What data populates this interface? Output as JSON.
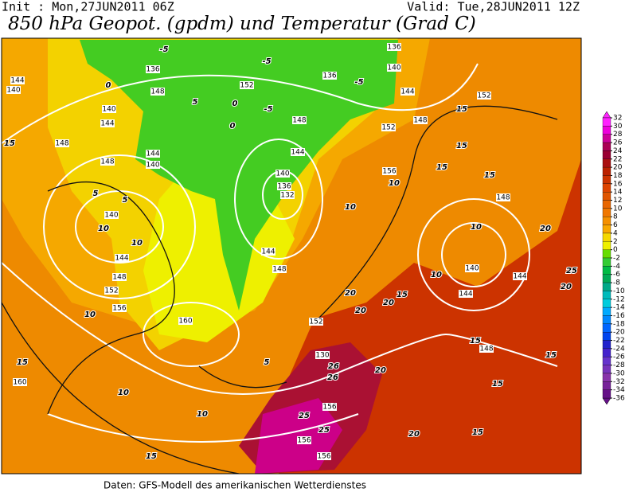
{
  "header": {
    "init": "Init : Mon,27JUN2011 06Z",
    "valid": "Valid: Tue,28JUN2011 12Z",
    "title": "850 hPa Geopot. (gpdm) und Temperatur (Grad C)"
  },
  "colorbar": {
    "levels": [
      32,
      30,
      28,
      26,
      24,
      22,
      20,
      18,
      16,
      14,
      12,
      10,
      8,
      6,
      4,
      2,
      0,
      -2,
      -4,
      -6,
      -8,
      -10,
      -12,
      -14,
      -16,
      -18,
      -20,
      -22,
      -24,
      -26,
      -28,
      -30,
      -32,
      -34,
      -36
    ],
    "colors": [
      "#ff22ff",
      "#ee00dd",
      "#cc0099",
      "#aa0055",
      "#990033",
      "#aa1111",
      "#bb2200",
      "#cc3300",
      "#dd4400",
      "#e05500",
      "#e86600",
      "#f07700",
      "#f59000",
      "#f8a800",
      "#f5d800",
      "#eef000",
      "#66dd00",
      "#33cc33",
      "#00bb44",
      "#00aa55",
      "#00aa88",
      "#00bbbb",
      "#00ccdd",
      "#00aaff",
      "#0088ff",
      "#0066ff",
      "#0044ee",
      "#2222cc",
      "#4422cc",
      "#6633cc",
      "#7733bb",
      "#8833aa",
      "#772299",
      "#661188"
    ]
  },
  "map_labels": [
    144,
    140,
    136,
    0,
    -5,
    140,
    144,
    148,
    5,
    152,
    0,
    0,
    -5,
    148,
    136,
    -5,
    140,
    136,
    144,
    148,
    152,
    152,
    15,
    15,
    15,
    148,
    148,
    144,
    140,
    144,
    140,
    136,
    132,
    156,
    15,
    15,
    148,
    10,
    10,
    10,
    140,
    10,
    144,
    148,
    152,
    156,
    144,
    148,
    10,
    140,
    144,
    144,
    20,
    25,
    20,
    10,
    15,
    20,
    20,
    20,
    152,
    160,
    15,
    148,
    15,
    130,
    26,
    26,
    20,
    5,
    15,
    160,
    10,
    10,
    156,
    25,
    25,
    156,
    156,
    20,
    15,
    15,
    10,
    5,
    5,
    -5,
    15
  ],
  "footer": "Daten: GFS-Modell des amerikanischen Wetterdienstes"
}
